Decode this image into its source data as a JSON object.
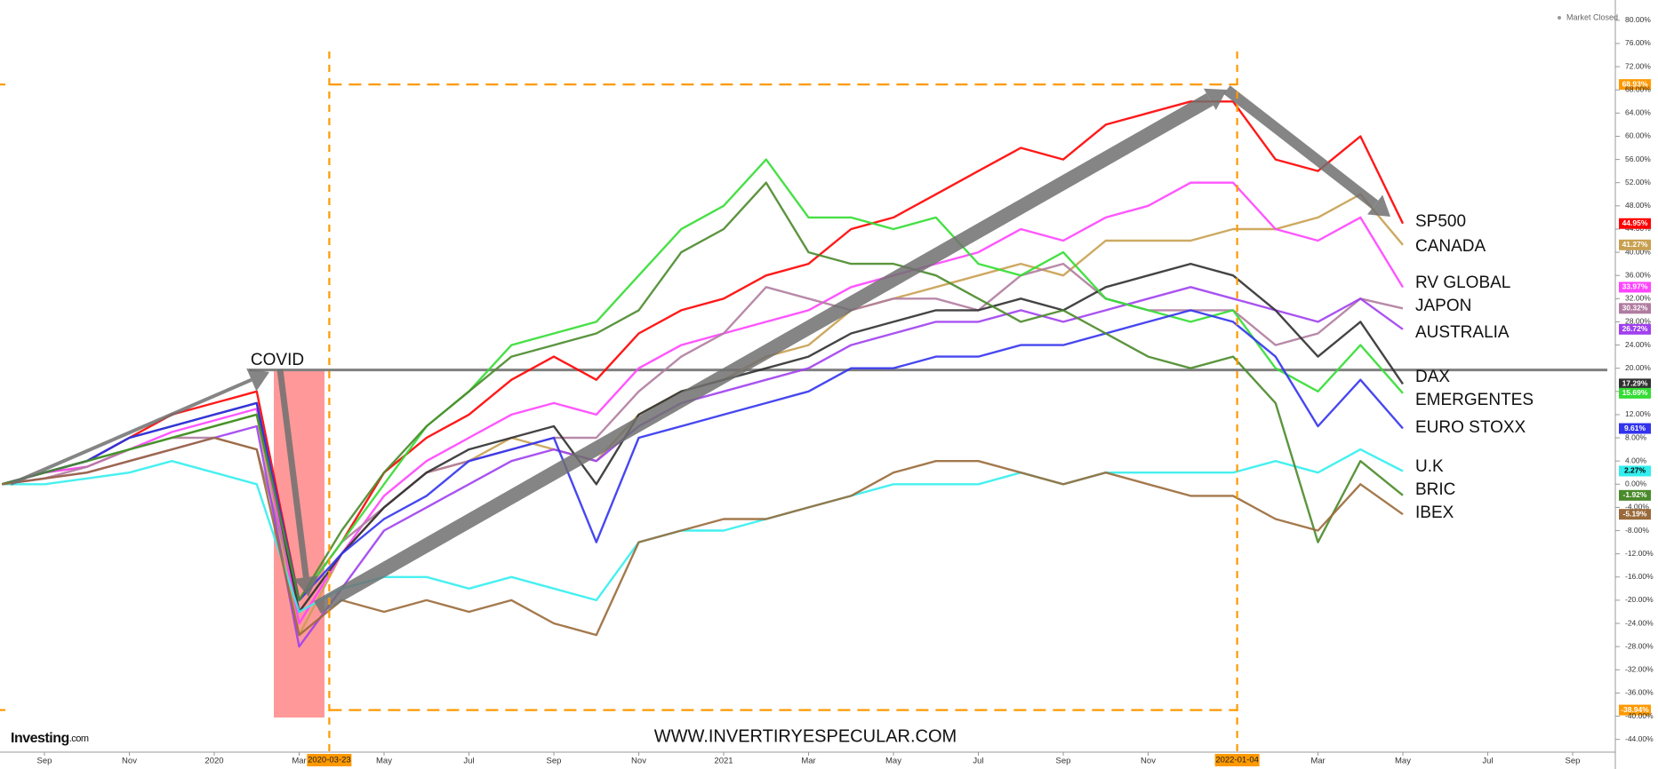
{
  "chart_data": {
    "type": "line",
    "status": "Market Closed",
    "brand": {
      "name": "Investing",
      "suffix": ".com"
    },
    "annotations": [
      "COVID",
      "WWW.INVERTIRYESPECULAR.COM"
    ],
    "categories": [
      null,
      "Sep",
      null,
      "Nov",
      null,
      "2020",
      null,
      "Mar",
      null,
      "May",
      null,
      "Jul",
      null,
      "Sep",
      null,
      "Nov",
      null,
      "2021",
      null,
      "Mar",
      null,
      "May",
      null,
      "Jul",
      null,
      "Sep",
      null,
      "Nov",
      null,
      null,
      null,
      "Mar",
      null,
      "May",
      null,
      "Jul",
      null,
      "Sep"
    ],
    "ylim": [
      -46.2,
      83.5
    ],
    "yticks": [
      {
        "value": -44,
        "label": "-44.00%"
      },
      {
        "value": -40,
        "label": "-40.00%"
      },
      {
        "value": -36,
        "label": "-36.00%"
      },
      {
        "value": -32,
        "label": "-32.00%"
      },
      {
        "value": -28,
        "label": "-28.00%"
      },
      {
        "value": -24,
        "label": "-24.00%"
      },
      {
        "value": -20,
        "label": "-20.00%"
      },
      {
        "value": -16,
        "label": "-16.00%"
      },
      {
        "value": -12,
        "label": "-12.00%"
      },
      {
        "value": -8,
        "label": "-8.00%"
      },
      {
        "value": -4,
        "label": "-4.00%"
      },
      {
        "value": 0,
        "label": "0.00%"
      },
      {
        "value": 4,
        "label": "4.00%"
      },
      {
        "value": 8,
        "label": "8.00%"
      },
      {
        "value": 12,
        "label": "12.00%"
      },
      {
        "value": 16,
        "label": "16.00%"
      },
      {
        "value": 20,
        "label": "20.00%"
      },
      {
        "value": 24,
        "label": "24.00%"
      },
      {
        "value": 28,
        "label": "28.00%"
      },
      {
        "value": 32,
        "label": "32.00%"
      },
      {
        "value": 36,
        "label": "36.00%"
      },
      {
        "value": 40,
        "label": "40.00%"
      },
      {
        "value": 44,
        "label": "44.00%"
      },
      {
        "value": 48,
        "label": "48.00%"
      },
      {
        "value": 52,
        "label": "52.00%"
      },
      {
        "value": 56,
        "label": "56.00%"
      },
      {
        "value": 60,
        "label": "60.00%"
      },
      {
        "value": 64,
        "label": "64.00%"
      },
      {
        "value": 68,
        "label": "68.00%"
      },
      {
        "value": 72,
        "label": "72.00%"
      },
      {
        "value": 76,
        "label": "76.00%"
      },
      {
        "value": 80,
        "label": "80.00%"
      }
    ],
    "grid": false,
    "reference_lines": {
      "color": "#ff9900",
      "x": [
        "2020-03-23",
        "2022-01-04"
      ],
      "y": [
        {
          "value": 68.93,
          "label": "68.93%"
        },
        {
          "value": -38.94,
          "label": "-38.94%"
        }
      ]
    },
    "horizontal_line": {
      "value": 19.7,
      "color": "#808080"
    },
    "series": [
      {
        "name": "SP500",
        "color": "#ff0000",
        "values": [
          0,
          2,
          4,
          8,
          12,
          14,
          16,
          -20,
          -10,
          2,
          8,
          12,
          18,
          22,
          18,
          26,
          30,
          32,
          36,
          38,
          44,
          46,
          50,
          54,
          58,
          56,
          62,
          64,
          66,
          66,
          56,
          54,
          60,
          44.95,
          null,
          null,
          null,
          null
        ],
        "value_labels": [
          null,
          null,
          null,
          null,
          null,
          null,
          null,
          null,
          null,
          null,
          null,
          null,
          null,
          null,
          null,
          null,
          null,
          null,
          null,
          null,
          null,
          null,
          null,
          null,
          null,
          null,
          null,
          null,
          null,
          null,
          null,
          null,
          null,
          "44.95%",
          null,
          null,
          null,
          null
        ]
      },
      {
        "name": "CANADA",
        "color": "#c8a050",
        "values": [
          0,
          2,
          3,
          6,
          8,
          10,
          12,
          -26,
          -12,
          -4,
          2,
          4,
          8,
          6,
          4,
          12,
          16,
          18,
          22,
          24,
          30,
          32,
          34,
          36,
          38,
          36,
          42,
          42,
          42,
          44,
          44,
          46,
          50,
          41.27,
          null,
          null,
          null,
          null
        ],
        "value_labels": [
          null,
          null,
          null,
          null,
          null,
          null,
          null,
          null,
          null,
          null,
          null,
          null,
          null,
          null,
          null,
          null,
          null,
          null,
          null,
          null,
          null,
          null,
          null,
          null,
          null,
          null,
          null,
          null,
          null,
          null,
          null,
          null,
          null,
          "41.27%",
          null,
          null,
          null,
          null
        ]
      },
      {
        "name": "RV GLOBAL",
        "color": "#ff44ff",
        "values": [
          0,
          2,
          3,
          6,
          9,
          11,
          13,
          -24,
          -12,
          -2,
          4,
          8,
          12,
          14,
          12,
          20,
          24,
          26,
          28,
          30,
          34,
          36,
          38,
          40,
          44,
          42,
          46,
          48,
          52,
          52,
          44,
          42,
          46,
          33.97,
          null,
          null,
          null,
          null
        ],
        "value_labels": [
          null,
          null,
          null,
          null,
          null,
          null,
          null,
          null,
          null,
          null,
          null,
          null,
          null,
          null,
          null,
          null,
          null,
          null,
          null,
          null,
          null,
          null,
          null,
          null,
          null,
          null,
          null,
          null,
          null,
          null,
          null,
          null,
          null,
          "33.97%",
          null,
          null,
          null,
          null
        ]
      },
      {
        "name": "JAPON",
        "color": "#b07ca0",
        "values": [
          0,
          1,
          3,
          6,
          8,
          8,
          6,
          -20,
          -10,
          -4,
          2,
          4,
          6,
          8,
          8,
          16,
          22,
          26,
          34,
          32,
          30,
          32,
          32,
          30,
          36,
          38,
          32,
          30,
          30,
          30,
          24,
          26,
          32,
          30.32,
          null,
          null,
          null,
          null
        ],
        "value_labels": [
          null,
          null,
          null,
          null,
          null,
          null,
          null,
          null,
          null,
          null,
          null,
          null,
          null,
          null,
          null,
          null,
          null,
          null,
          null,
          null,
          null,
          null,
          null,
          null,
          null,
          null,
          null,
          null,
          null,
          null,
          null,
          null,
          null,
          "30.32%",
          null,
          null,
          null,
          null
        ]
      },
      {
        "name": "AUSTRALIA",
        "color": "#a040f0",
        "values": [
          0,
          1,
          2,
          4,
          6,
          8,
          10,
          -28,
          -18,
          -8,
          -4,
          0,
          4,
          6,
          4,
          10,
          14,
          16,
          18,
          20,
          24,
          26,
          28,
          28,
          30,
          28,
          30,
          32,
          34,
          32,
          30,
          28,
          32,
          26.72,
          null,
          null,
          null,
          null
        ],
        "value_labels": [
          null,
          null,
          null,
          null,
          null,
          null,
          null,
          null,
          null,
          null,
          null,
          null,
          null,
          null,
          null,
          null,
          null,
          null,
          null,
          null,
          null,
          null,
          null,
          null,
          null,
          null,
          null,
          null,
          null,
          null,
          null,
          null,
          null,
          "26.72%",
          null,
          null,
          null,
          null
        ]
      },
      {
        "name": "DAX",
        "color": "#303030",
        "values": [
          0,
          2,
          4,
          8,
          10,
          12,
          14,
          -22,
          -12,
          -4,
          2,
          6,
          8,
          10,
          0,
          12,
          16,
          18,
          20,
          22,
          26,
          28,
          30,
          30,
          32,
          30,
          34,
          36,
          38,
          36,
          30,
          22,
          28,
          17.29,
          null,
          null,
          null,
          null
        ],
        "value_labels": [
          null,
          null,
          null,
          null,
          null,
          null,
          null,
          null,
          null,
          null,
          null,
          null,
          null,
          null,
          null,
          null,
          null,
          null,
          null,
          null,
          null,
          null,
          null,
          null,
          null,
          null,
          null,
          null,
          null,
          null,
          null,
          null,
          null,
          "17.29%",
          null,
          null,
          null,
          null
        ]
      },
      {
        "name": "EMERGENTES",
        "color": "#33dd33",
        "values": [
          0,
          2,
          4,
          6,
          8,
          10,
          12,
          -20,
          -10,
          0,
          10,
          16,
          24,
          26,
          28,
          36,
          44,
          48,
          56,
          46,
          46,
          44,
          46,
          38,
          36,
          40,
          32,
          30,
          28,
          30,
          20,
          16,
          24,
          15.69,
          null,
          null,
          null,
          null
        ],
        "value_labels": [
          null,
          null,
          null,
          null,
          null,
          null,
          null,
          null,
          null,
          null,
          null,
          null,
          null,
          null,
          null,
          null,
          null,
          null,
          null,
          null,
          null,
          null,
          null,
          null,
          null,
          null,
          null,
          null,
          null,
          null,
          null,
          null,
          null,
          "15.69%",
          null,
          null,
          null,
          null
        ]
      },
      {
        "name": "EURO STOXX",
        "color": "#3333ee",
        "values": [
          0,
          2,
          4,
          8,
          10,
          12,
          14,
          -20,
          -12,
          -6,
          -2,
          4,
          6,
          8,
          -10,
          8,
          10,
          12,
          14,
          16,
          20,
          20,
          22,
          22,
          24,
          24,
          26,
          28,
          30,
          28,
          22,
          10,
          18,
          9.61,
          null,
          null,
          null,
          null
        ],
        "value_labels": [
          null,
          null,
          null,
          null,
          null,
          null,
          null,
          null,
          null,
          null,
          null,
          null,
          null,
          null,
          null,
          null,
          null,
          null,
          null,
          null,
          null,
          null,
          null,
          null,
          null,
          null,
          null,
          null,
          null,
          null,
          null,
          null,
          null,
          "9.61%",
          null,
          null,
          null,
          null
        ]
      },
      {
        "name": "U.K",
        "color": "#33eeee",
        "values": [
          0,
          0,
          1,
          2,
          4,
          2,
          0,
          -22,
          -18,
          -16,
          -16,
          -18,
          -16,
          -18,
          -20,
          -10,
          -8,
          -8,
          -6,
          -4,
          -2,
          0,
          0,
          0,
          2,
          0,
          2,
          2,
          2,
          2,
          4,
          2,
          6,
          2.27,
          null,
          null,
          null,
          null
        ],
        "value_labels": [
          null,
          null,
          null,
          null,
          null,
          null,
          null,
          null,
          null,
          null,
          null,
          null,
          null,
          null,
          null,
          null,
          null,
          null,
          null,
          null,
          null,
          null,
          null,
          null,
          null,
          null,
          null,
          null,
          null,
          null,
          null,
          null,
          null,
          "2.27%",
          null,
          null,
          null,
          null
        ]
      },
      {
        "name": "BRIC",
        "color": "#4a8a2a",
        "values": [
          0,
          2,
          4,
          6,
          8,
          10,
          12,
          -20,
          -8,
          2,
          10,
          16,
          22,
          24,
          26,
          30,
          40,
          44,
          52,
          40,
          38,
          38,
          36,
          32,
          28,
          30,
          26,
          22,
          20,
          22,
          14,
          -10,
          4,
          -1.92,
          null,
          null,
          null,
          null
        ],
        "value_labels": [
          null,
          null,
          null,
          null,
          null,
          null,
          null,
          null,
          null,
          null,
          null,
          null,
          null,
          null,
          null,
          null,
          null,
          null,
          null,
          null,
          null,
          null,
          null,
          null,
          null,
          null,
          null,
          null,
          null,
          null,
          null,
          null,
          null,
          "-1.92%",
          null,
          null,
          null,
          null
        ]
      },
      {
        "name": "IBEX",
        "color": "#9a6a3a",
        "values": [
          0,
          1,
          2,
          4,
          6,
          8,
          6,
          -26,
          -20,
          -22,
          -20,
          -22,
          -20,
          -24,
          -26,
          -10,
          -8,
          -6,
          -6,
          -4,
          -2,
          2,
          4,
          4,
          2,
          0,
          2,
          0,
          -2,
          -2,
          -6,
          -8,
          0,
          -5.19,
          null,
          null,
          null,
          null
        ],
        "value_labels": [
          null,
          null,
          null,
          null,
          null,
          null,
          null,
          null,
          null,
          null,
          null,
          null,
          null,
          null,
          null,
          null,
          null,
          null,
          null,
          null,
          null,
          null,
          null,
          null,
          null,
          null,
          null,
          null,
          null,
          null,
          null,
          null,
          null,
          "-5.19%",
          null,
          null,
          null,
          null
        ]
      }
    ]
  }
}
